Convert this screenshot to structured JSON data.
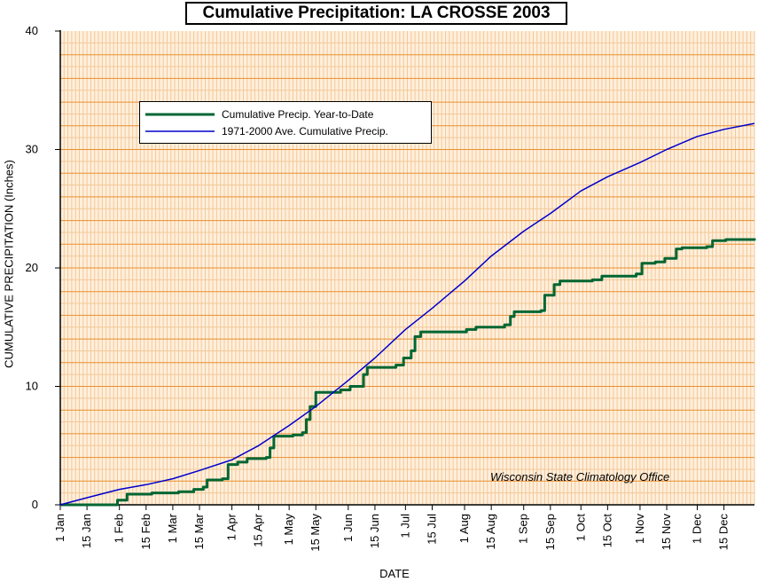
{
  "chart_data": {
    "type": "line",
    "title": "Cumulative Precipitation: LA CROSSE 2003",
    "xlabel": "DATE",
    "ylabel": "CUMULATIVE PRECIPITATION (Inches)",
    "ylim": [
      0,
      40
    ],
    "yticks": [
      0,
      10,
      20,
      30,
      40
    ],
    "xlim": [
      "2003-01-01",
      "2003-12-31"
    ],
    "xticks": [
      {
        "date": "2003-01-01",
        "label": "1 Jan"
      },
      {
        "date": "2003-01-15",
        "label": "15 Jan"
      },
      {
        "date": "2003-02-01",
        "label": "1 Feb"
      },
      {
        "date": "2003-02-15",
        "label": "15 Feb"
      },
      {
        "date": "2003-03-01",
        "label": "1 Mar"
      },
      {
        "date": "2003-03-15",
        "label": "15 Mar"
      },
      {
        "date": "2003-04-01",
        "label": "1 Apr"
      },
      {
        "date": "2003-04-15",
        "label": "15 Apr"
      },
      {
        "date": "2003-05-01",
        "label": "1 May"
      },
      {
        "date": "2003-05-15",
        "label": "15 May"
      },
      {
        "date": "2003-06-01",
        "label": "1 Jun"
      },
      {
        "date": "2003-06-15",
        "label": "15 Jun"
      },
      {
        "date": "2003-07-01",
        "label": "1 Jul"
      },
      {
        "date": "2003-07-15",
        "label": "15 Jul"
      },
      {
        "date": "2003-08-01",
        "label": "1 Aug"
      },
      {
        "date": "2003-08-15",
        "label": "15 Aug"
      },
      {
        "date": "2003-09-01",
        "label": "1 Sep"
      },
      {
        "date": "2003-09-15",
        "label": "15 Sep"
      },
      {
        "date": "2003-10-01",
        "label": "1 Oct"
      },
      {
        "date": "2003-10-15",
        "label": "15 Oct"
      },
      {
        "date": "2003-11-01",
        "label": "1 Nov"
      },
      {
        "date": "2003-11-15",
        "label": "15 Nov"
      },
      {
        "date": "2003-12-01",
        "label": "1 Dec"
      },
      {
        "date": "2003-12-15",
        "label": "15 Dec"
      }
    ],
    "grid": true,
    "legend_position": "top-left",
    "annotation": "Wisconsin State Climatology Office",
    "series": [
      {
        "name": "Cumulative Precip. Year-to-Date",
        "color": "#006633",
        "step": true,
        "points": [
          [
            "2003-01-01",
            0.0
          ],
          [
            "2003-01-28",
            0.0
          ],
          [
            "2003-01-31",
            0.4
          ],
          [
            "2003-02-05",
            0.9
          ],
          [
            "2003-02-18",
            1.0
          ],
          [
            "2003-03-04",
            1.1
          ],
          [
            "2003-03-12",
            1.3
          ],
          [
            "2003-03-17",
            1.5
          ],
          [
            "2003-03-19",
            2.1
          ],
          [
            "2003-03-27",
            2.2
          ],
          [
            "2003-03-30",
            3.4
          ],
          [
            "2003-04-04",
            3.6
          ],
          [
            "2003-04-09",
            3.9
          ],
          [
            "2003-04-19",
            4.0
          ],
          [
            "2003-04-21",
            4.8
          ],
          [
            "2003-04-23",
            5.8
          ],
          [
            "2003-05-03",
            5.9
          ],
          [
            "2003-05-08",
            6.1
          ],
          [
            "2003-05-10",
            7.2
          ],
          [
            "2003-05-12",
            8.3
          ],
          [
            "2003-05-15",
            9.5
          ],
          [
            "2003-05-28",
            9.7
          ],
          [
            "2003-06-02",
            10.0
          ],
          [
            "2003-06-09",
            11.0
          ],
          [
            "2003-06-11",
            11.6
          ],
          [
            "2003-06-26",
            11.8
          ],
          [
            "2003-06-30",
            12.4
          ],
          [
            "2003-07-04",
            13.0
          ],
          [
            "2003-07-06",
            14.2
          ],
          [
            "2003-07-09",
            14.6
          ],
          [
            "2003-08-02",
            14.8
          ],
          [
            "2003-08-07",
            15.0
          ],
          [
            "2003-08-22",
            15.2
          ],
          [
            "2003-08-25",
            15.9
          ],
          [
            "2003-08-27",
            16.3
          ],
          [
            "2003-09-10",
            16.4
          ],
          [
            "2003-09-12",
            17.7
          ],
          [
            "2003-09-17",
            18.6
          ],
          [
            "2003-09-20",
            18.9
          ],
          [
            "2003-10-07",
            19.0
          ],
          [
            "2003-10-12",
            19.3
          ],
          [
            "2003-10-30",
            19.5
          ],
          [
            "2003-11-02",
            20.4
          ],
          [
            "2003-11-09",
            20.5
          ],
          [
            "2003-11-14",
            20.8
          ],
          [
            "2003-11-20",
            21.6
          ],
          [
            "2003-11-23",
            21.7
          ],
          [
            "2003-12-06",
            21.8
          ],
          [
            "2003-12-09",
            22.3
          ],
          [
            "2003-12-16",
            22.4
          ],
          [
            "2003-12-31",
            22.5
          ]
        ]
      },
      {
        "name": "1971-2000 Ave. Cumulative Precip.",
        "color": "#0000cc",
        "step": false,
        "points": [
          [
            "2003-01-01",
            0.0
          ],
          [
            "2003-01-15",
            0.6
          ],
          [
            "2003-02-01",
            1.3
          ],
          [
            "2003-02-15",
            1.7
          ],
          [
            "2003-03-01",
            2.2
          ],
          [
            "2003-03-15",
            2.9
          ],
          [
            "2003-04-01",
            3.8
          ],
          [
            "2003-04-15",
            5.0
          ],
          [
            "2003-05-01",
            6.7
          ],
          [
            "2003-05-15",
            8.3
          ],
          [
            "2003-06-01",
            10.5
          ],
          [
            "2003-06-15",
            12.4
          ],
          [
            "2003-07-01",
            14.8
          ],
          [
            "2003-07-15",
            16.6
          ],
          [
            "2003-08-01",
            18.9
          ],
          [
            "2003-08-15",
            21.0
          ],
          [
            "2003-09-01",
            23.1
          ],
          [
            "2003-09-15",
            24.6
          ],
          [
            "2003-10-01",
            26.5
          ],
          [
            "2003-10-15",
            27.7
          ],
          [
            "2003-11-01",
            28.9
          ],
          [
            "2003-11-15",
            30.0
          ],
          [
            "2003-12-01",
            31.1
          ],
          [
            "2003-12-15",
            31.7
          ],
          [
            "2003-12-31",
            32.2
          ]
        ]
      }
    ]
  }
}
